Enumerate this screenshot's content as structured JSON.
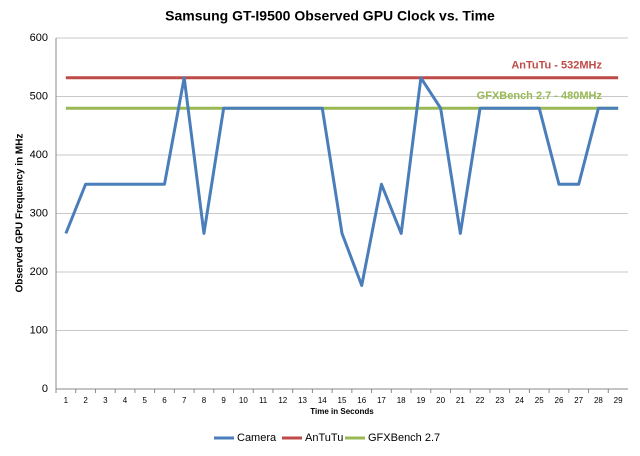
{
  "chart_data": {
    "type": "line",
    "title": "Samsung GT-I9500 Observed GPU Clock vs. Time",
    "x_label": "Time in Seconds",
    "y_label": "Observed GPU Frequency in MHz",
    "categories": [
      "1",
      "2",
      "3",
      "4",
      "5",
      "6",
      "7",
      "8",
      "9",
      "10",
      "11",
      "12",
      "13",
      "14",
      "15",
      "16",
      "17",
      "18",
      "19",
      "20",
      "21",
      "22",
      "23",
      "24",
      "25",
      "26",
      "27",
      "28",
      "29"
    ],
    "series": [
      {
        "name": "Camera",
        "color": "#4a7ebb",
        "values": [
          266,
          350,
          350,
          350,
          350,
          350,
          532,
          266,
          480,
          480,
          480,
          480,
          480,
          480,
          266,
          177,
          350,
          266,
          532,
          480,
          266,
          480,
          480,
          480,
          480,
          350,
          350,
          480,
          480
        ]
      },
      {
        "name": "AnTuTu",
        "color": "#be4b48",
        "values": [
          532,
          532,
          532,
          532,
          532,
          532,
          532,
          532,
          532,
          532,
          532,
          532,
          532,
          532,
          532,
          532,
          532,
          532,
          532,
          532,
          532,
          532,
          532,
          532,
          532,
          532,
          532,
          532,
          532
        ]
      },
      {
        "name": "GFXBench 2.7",
        "color": "#98b954",
        "values": [
          480,
          480,
          480,
          480,
          480,
          480,
          480,
          480,
          480,
          480,
          480,
          480,
          480,
          480,
          480,
          480,
          480,
          480,
          480,
          480,
          480,
          480,
          480,
          480,
          480,
          480,
          480,
          480,
          480
        ]
      }
    ],
    "annotations": [
      "AnTuTu - 532MHz",
      "GFXBench 2.7 - 480MHz"
    ],
    "ylim": [
      0,
      600
    ],
    "yticks": [
      0,
      100,
      200,
      300,
      400,
      500,
      600
    ],
    "grid": true,
    "legend": "bottom"
  }
}
